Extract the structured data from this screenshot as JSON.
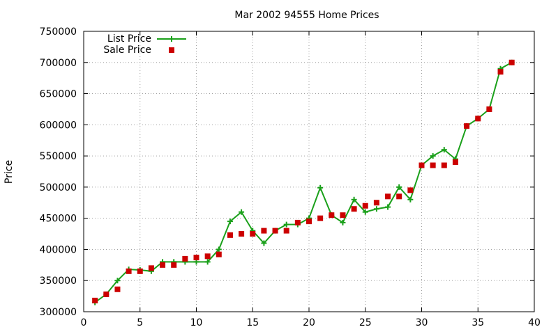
{
  "chart_data": {
    "type": "line",
    "title": "Mar 2002 94555 Home Prices",
    "xlabel": "",
    "ylabel": "Price",
    "xlim": [
      0,
      40
    ],
    "ylim": [
      300000,
      750000
    ],
    "x_ticks": [
      "0",
      "5",
      "10",
      "15",
      "20",
      "25",
      "30",
      "35",
      "40"
    ],
    "y_ticks": [
      "300000",
      "350000",
      "400000",
      "450000",
      "500000",
      "550000",
      "600000",
      "650000",
      "700000",
      "750000"
    ],
    "grid": true,
    "legend_position": "top-left",
    "series": [
      {
        "name": "List Price",
        "style": "linespoints",
        "marker": "plus",
        "color": "#1aa01a",
        "x": [
          1,
          2,
          3,
          4,
          5,
          6,
          7,
          8,
          9,
          10,
          11,
          12,
          13,
          14,
          15,
          16,
          17,
          18,
          19,
          20,
          21,
          22,
          23,
          24,
          25,
          26,
          27,
          28,
          29,
          30,
          31,
          32,
          33,
          34,
          35,
          36,
          37,
          38
        ],
        "values": [
          315000,
          328000,
          350000,
          368000,
          367000,
          365000,
          380000,
          380000,
          380000,
          380000,
          380000,
          400000,
          445000,
          460000,
          430000,
          410000,
          430000,
          440000,
          440000,
          450000,
          499000,
          455000,
          443000,
          480000,
          460000,
          465000,
          468000,
          500000,
          480000,
          535000,
          550000,
          560000,
          545000,
          598000,
          610000,
          625000,
          690000,
          700000
        ]
      },
      {
        "name": "Sale Price",
        "style": "points",
        "marker": "square",
        "color": "#cc0000",
        "x": [
          1,
          2,
          3,
          4,
          5,
          6,
          7,
          8,
          9,
          10,
          11,
          12,
          13,
          14,
          15,
          16,
          17,
          18,
          19,
          20,
          21,
          22,
          23,
          24,
          25,
          26,
          27,
          28,
          29,
          30,
          31,
          32,
          33,
          34,
          35,
          36,
          37,
          38
        ],
        "values": [
          318000,
          328000,
          336000,
          365000,
          365000,
          370000,
          375000,
          375000,
          385000,
          387000,
          389000,
          392000,
          423000,
          425000,
          425000,
          430000,
          430000,
          430000,
          443000,
          445000,
          450000,
          455000,
          455000,
          465000,
          470000,
          475000,
          485000,
          485000,
          495000,
          535000,
          535000,
          535000,
          540000,
          598000,
          610000,
          625000,
          685000,
          700000
        ]
      }
    ]
  }
}
